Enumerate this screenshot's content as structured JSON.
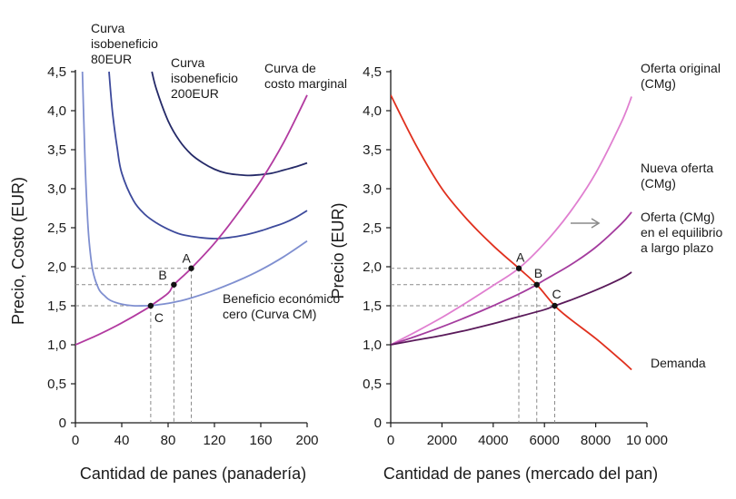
{
  "chart_data": [
    {
      "type": "line",
      "xlabel": "Cantidad de panes (panadería)",
      "ylabel": "Precio, Costo (EUR)",
      "xlim": [
        0,
        200
      ],
      "ylim": [
        0,
        4.5
      ],
      "x_ticks": [
        0,
        40,
        80,
        120,
        160,
        200
      ],
      "x_tick_labels": [
        "0",
        "40",
        "80",
        "120",
        "160",
        "200"
      ],
      "y_ticks": [
        0,
        0.5,
        1.0,
        1.5,
        2.0,
        2.5,
        3.0,
        3.5,
        4.0,
        4.5
      ],
      "y_tick_labels": [
        "0",
        "0,5",
        "1,0",
        "1,5",
        "2,0",
        "2,5",
        "3,0",
        "3,5",
        "4,0",
        "4,5"
      ],
      "grid": false,
      "series": [
        {
          "name": "Curva isobeneficio 80EUR",
          "label_lines": [
            "Curva",
            "isobeneficio",
            "80EUR"
          ],
          "color": "#3d4a9c",
          "x": [
            29,
            32,
            36,
            40,
            50,
            60,
            70,
            80,
            90,
            100,
            110,
            120,
            130,
            140,
            150,
            160,
            170,
            180,
            190,
            200
          ],
          "y": [
            4.5,
            3.98,
            3.53,
            3.2,
            2.85,
            2.67,
            2.56,
            2.48,
            2.42,
            2.39,
            2.37,
            2.36,
            2.37,
            2.39,
            2.42,
            2.46,
            2.51,
            2.56,
            2.63,
            2.72
          ]
        },
        {
          "name": "Curva isobeneficio 200EUR",
          "label_lines": [
            "Curva",
            "isobeneficio",
            "200EUR"
          ],
          "color": "#252a68",
          "x": [
            66,
            70,
            80,
            90,
            100,
            110,
            120,
            130,
            140,
            150,
            160,
            170,
            180,
            190,
            200
          ],
          "y": [
            4.5,
            4.27,
            3.87,
            3.61,
            3.44,
            3.33,
            3.25,
            3.2,
            3.18,
            3.17,
            3.18,
            3.2,
            3.24,
            3.28,
            3.33
          ]
        },
        {
          "name": "Beneficio económico cero (Curva CM)",
          "label_lines": [
            "Beneficio económico",
            "cero (Curva CM)"
          ],
          "color": "#7f8fd0",
          "x": [
            6,
            8,
            10,
            12,
            15,
            20,
            25,
            30,
            40,
            50,
            60,
            65,
            70,
            80,
            90,
            100,
            120,
            140,
            160,
            180,
            200
          ],
          "y": [
            4.5,
            3.5,
            2.75,
            2.3,
            1.95,
            1.72,
            1.63,
            1.57,
            1.52,
            1.5,
            1.5,
            1.5,
            1.51,
            1.53,
            1.56,
            1.6,
            1.7,
            1.82,
            1.96,
            2.13,
            2.33
          ]
        },
        {
          "name": "Curva de costo marginal",
          "label_lines": [
            "Curva de",
            "costo marginal"
          ],
          "color": "#b23aa0",
          "x": [
            0,
            20,
            40,
            60,
            65,
            80,
            85,
            100,
            120,
            140,
            160,
            180,
            200
          ],
          "y": [
            1.0,
            1.13,
            1.28,
            1.45,
            1.5,
            1.66,
            1.77,
            1.98,
            2.3,
            2.68,
            3.1,
            3.6,
            4.2
          ]
        }
      ],
      "points": [
        {
          "label": "A",
          "x": 100,
          "y": 1.98
        },
        {
          "label": "B",
          "x": 85,
          "y": 1.77
        },
        {
          "label": "C",
          "x": 65,
          "y": 1.5
        }
      ]
    },
    {
      "type": "line",
      "xlabel": "Cantidad de panes (mercado del pan)",
      "ylabel": "Precio (EUR)",
      "xlim": [
        0,
        10000
      ],
      "ylim": [
        0,
        4.5
      ],
      "x_ticks": [
        0,
        2000,
        4000,
        6000,
        8000,
        10000
      ],
      "x_tick_labels": [
        "0",
        "2000",
        "4000",
        "6000",
        "8000",
        "10 000"
      ],
      "y_ticks": [
        0,
        0.5,
        1.0,
        1.5,
        2.0,
        2.5,
        3.0,
        3.5,
        4.0,
        4.5
      ],
      "y_tick_labels": [
        "0",
        "0,5",
        "1,0",
        "1,5",
        "2,0",
        "2,5",
        "3,0",
        "3,5",
        "4,0",
        "4,5"
      ],
      "grid": false,
      "series": [
        {
          "name": "Oferta original (CMg)",
          "label_lines": [
            "Oferta original",
            "(CMg)"
          ],
          "color": "#e07fd0",
          "x": [
            0,
            1000,
            2000,
            3000,
            4000,
            5000,
            6000,
            7000,
            8000,
            9000,
            9400
          ],
          "y": [
            1.0,
            1.17,
            1.35,
            1.55,
            1.76,
            1.98,
            2.3,
            2.7,
            3.2,
            3.85,
            4.18
          ]
        },
        {
          "name": "Nueva oferta (CMg)",
          "label_lines": [
            "Nueva oferta",
            "(CMg)"
          ],
          "color": "#a43c9e",
          "x": [
            0,
            1000,
            2000,
            3000,
            4000,
            5000,
            5700,
            6000,
            7000,
            8000,
            9000,
            9400
          ],
          "y": [
            1.0,
            1.11,
            1.23,
            1.36,
            1.5,
            1.65,
            1.77,
            1.83,
            2.02,
            2.25,
            2.55,
            2.7
          ]
        },
        {
          "name": "Oferta (CMg) en el equilibrio a largo plazo",
          "label_lines": [
            "Oferta (CMg)",
            "en el equilibrio",
            "a largo plazo"
          ],
          "color": "#5a1a5a",
          "x": [
            0,
            1000,
            2000,
            3000,
            4000,
            5000,
            6000,
            6400,
            7000,
            8000,
            9000,
            9400
          ],
          "y": [
            1.0,
            1.06,
            1.12,
            1.19,
            1.27,
            1.36,
            1.45,
            1.5,
            1.57,
            1.7,
            1.85,
            1.93
          ]
        },
        {
          "name": "Demanda",
          "label_lines": [
            "Demanda"
          ],
          "color": "#e0301e",
          "x": [
            0,
            1000,
            2000,
            3000,
            4000,
            5000,
            5700,
            6400,
            7000,
            8000,
            9000,
            9400
          ],
          "y": [
            4.2,
            3.55,
            3.0,
            2.6,
            2.27,
            1.98,
            1.77,
            1.5,
            1.33,
            1.08,
            0.8,
            0.68
          ]
        }
      ],
      "points": [
        {
          "label": "A",
          "x": 5000,
          "y": 1.98
        },
        {
          "label": "B",
          "x": 5700,
          "y": 1.77
        },
        {
          "label": "C",
          "x": 6400,
          "y": 1.5
        }
      ]
    }
  ],
  "colors": {
    "axis": "#1a1a1a",
    "guide": "#8a8a8a",
    "arrow": "#8a8a8a"
  }
}
